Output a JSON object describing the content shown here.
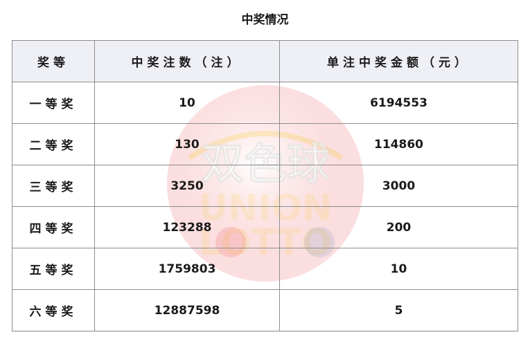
{
  "title": "中奖情况",
  "watermark": {
    "logo_text": "双色球 UNION LOTTO",
    "colors": {
      "circle": "#e8383d",
      "arc": "#f5c400",
      "blue_ball": "#2b5fb8"
    }
  },
  "table": {
    "headers": [
      "奖等",
      "中奖注数（注）",
      "单注中奖金额（元）"
    ],
    "rows": [
      {
        "level": "一等奖",
        "count": "10",
        "amount": "6194553"
      },
      {
        "level": "二等奖",
        "count": "130",
        "amount": "114860"
      },
      {
        "level": "三等奖",
        "count": "3250",
        "amount": "3000"
      },
      {
        "level": "四等奖",
        "count": "123288",
        "amount": "200"
      },
      {
        "level": "五等奖",
        "count": "1759803",
        "amount": "10"
      },
      {
        "level": "六等奖",
        "count": "12887598",
        "amount": "5"
      }
    ]
  }
}
